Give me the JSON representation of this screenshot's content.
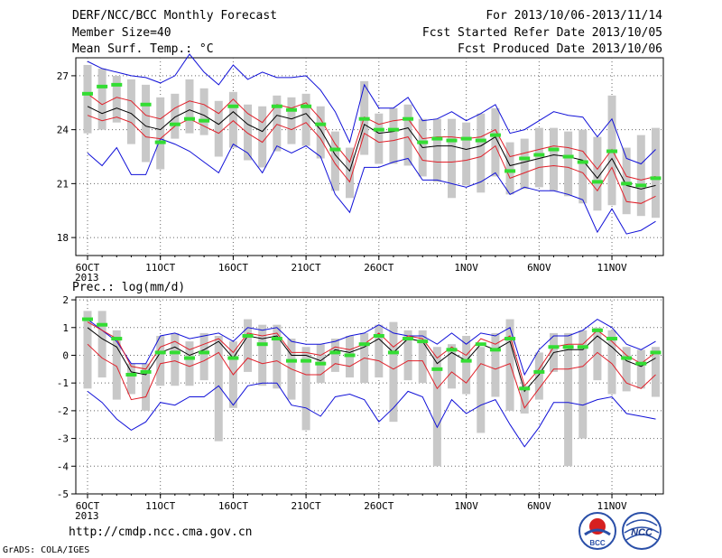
{
  "header": {
    "title": "DERF/NCC/BCC Monthly Forecast",
    "member": "Member Size=40",
    "var1": "Mean Surf. Temp.: °C",
    "period": "For 2013/10/06-2013/11/14",
    "start": "Fcst Started Refer Date 2013/10/05",
    "produced": "Fcst Produced Date 2013/10/06"
  },
  "footer": {
    "url": "http://cmdp.ncc.cma.gov.cn",
    "grads": "GrADS: COLA/IGES"
  },
  "logos": {
    "bcc": "BCC",
    "ncc": "NCC"
  },
  "colors": {
    "mean": "#000000",
    "spread": "#e0202a",
    "extreme": "#1010d8",
    "members": "#c8c8c8",
    "obs_mark": "#33dd33"
  },
  "chart_data": [
    {
      "type": "line",
      "title": "Mean Surf. Temp.: °C",
      "x_ticks": [
        "6OCT",
        "11OCT",
        "16OCT",
        "21OCT",
        "26OCT",
        "1NOV",
        "6NOV",
        "11NOV"
      ],
      "x_tick_days": [
        0,
        5,
        10,
        15,
        20,
        26,
        31,
        36
      ],
      "x_sub": "2013",
      "ylim": [
        17,
        28
      ],
      "y_ticks": [
        18,
        21,
        24,
        27
      ],
      "grid": true,
      "days": 40,
      "series": [
        {
          "role": "mean",
          "values": [
            25.3,
            24.9,
            25.2,
            24.9,
            24.2,
            24.0,
            24.7,
            25.1,
            24.8,
            24.3,
            25.0,
            24.3,
            23.9,
            24.8,
            24.6,
            24.9,
            24.0,
            22.6,
            21.7,
            24.3,
            23.8,
            23.9,
            24.1,
            23.0,
            23.1,
            23.1,
            22.9,
            23.1,
            23.6,
            22.0,
            22.2,
            22.4,
            22.6,
            22.5,
            22.3,
            21.3,
            22.4,
            20.9,
            20.7,
            20.9
          ]
        },
        {
          "role": "upper",
          "values": [
            26.0,
            25.4,
            25.8,
            25.6,
            24.8,
            24.6,
            25.2,
            25.6,
            25.4,
            24.9,
            25.7,
            24.9,
            24.4,
            25.4,
            25.2,
            25.5,
            24.6,
            23.2,
            22.2,
            24.7,
            24.3,
            24.5,
            24.6,
            23.5,
            23.6,
            23.6,
            23.5,
            23.6,
            24.0,
            22.5,
            22.7,
            22.9,
            23.1,
            23.0,
            22.8,
            21.8,
            22.9,
            21.4,
            21.2,
            21.4
          ]
        },
        {
          "role": "lower",
          "values": [
            24.8,
            24.5,
            24.7,
            24.4,
            23.6,
            23.5,
            24.2,
            24.6,
            24.2,
            23.8,
            24.5,
            23.8,
            23.3,
            24.3,
            24.0,
            24.4,
            23.5,
            22.1,
            21.1,
            23.8,
            23.3,
            23.4,
            23.6,
            22.3,
            22.2,
            22.2,
            22.3,
            22.5,
            23.1,
            21.3,
            21.6,
            21.9,
            22.0,
            21.9,
            21.6,
            20.6,
            21.9,
            20.0,
            19.9,
            20.3
          ]
        },
        {
          "role": "max",
          "values": [
            27.8,
            27.4,
            27.2,
            27.0,
            26.9,
            26.6,
            27.0,
            28.2,
            27.2,
            26.5,
            27.6,
            26.8,
            27.2,
            26.9,
            26.9,
            27.0,
            26.2,
            25.0,
            23.3,
            26.5,
            25.2,
            25.2,
            25.8,
            24.5,
            24.6,
            25.0,
            24.5,
            24.9,
            25.4,
            23.8,
            24.0,
            24.5,
            25.0,
            24.8,
            24.7,
            23.6,
            24.6,
            22.4,
            22.1,
            22.9
          ]
        },
        {
          "role": "min",
          "values": [
            22.7,
            22.0,
            23.0,
            21.5,
            21.5,
            23.5,
            23.2,
            22.8,
            22.2,
            21.6,
            23.2,
            22.7,
            21.6,
            23.1,
            22.7,
            23.1,
            22.5,
            20.4,
            19.4,
            21.9,
            21.9,
            22.2,
            22.4,
            21.2,
            21.2,
            21.0,
            20.8,
            21.1,
            21.6,
            20.4,
            20.8,
            20.6,
            20.6,
            20.4,
            20.1,
            18.3,
            19.6,
            18.2,
            18.4,
            18.9
          ]
        },
        {
          "role": "obs",
          "values": [
            26.0,
            26.4,
            26.5,
            null,
            25.4,
            23.3,
            24.3,
            24.6,
            24.5,
            null,
            25.3,
            null,
            null,
            25.3,
            25.1,
            25.3,
            24.3,
            22.9,
            null,
            24.6,
            24.0,
            24.0,
            24.6,
            23.3,
            23.5,
            23.4,
            23.5,
            23.4,
            23.7,
            21.7,
            22.4,
            22.6,
            22.9,
            22.5,
            22.2,
            21.1,
            22.8,
            21.0,
            20.9,
            21.3
          ]
        }
      ],
      "members": [
        [
          23.8,
          27.6
        ],
        [
          24.0,
          27.4
        ],
        [
          24.4,
          27.0
        ],
        [
          23.2,
          26.8
        ],
        [
          22.2,
          26.5
        ],
        [
          21.8,
          25.8
        ],
        [
          23.5,
          26.0
        ],
        [
          23.8,
          26.8
        ],
        [
          23.7,
          26.3
        ],
        [
          22.5,
          25.6
        ],
        [
          23.0,
          26.1
        ],
        [
          22.3,
          25.4
        ],
        [
          21.9,
          25.3
        ],
        [
          22.8,
          25.9
        ],
        [
          23.2,
          25.8
        ],
        [
          23.1,
          26.0
        ],
        [
          22.4,
          25.3
        ],
        [
          20.6,
          23.9
        ],
        [
          20.2,
          23.0
        ],
        [
          22.6,
          26.7
        ],
        [
          22.1,
          24.9
        ],
        [
          22.1,
          25.2
        ],
        [
          22.0,
          25.4
        ],
        [
          21.4,
          24.6
        ],
        [
          21.1,
          24.6
        ],
        [
          20.2,
          24.6
        ],
        [
          20.9,
          24.4
        ],
        [
          20.5,
          24.9
        ],
        [
          21.4,
          25.2
        ],
        [
          20.4,
          23.3
        ],
        [
          20.7,
          23.5
        ],
        [
          20.8,
          24.1
        ],
        [
          20.6,
          24.1
        ],
        [
          20.3,
          23.9
        ],
        [
          19.9,
          24.0
        ],
        [
          19.5,
          23.6
        ],
        [
          19.8,
          25.9
        ],
        [
          19.3,
          23.0
        ],
        [
          19.2,
          23.7
        ],
        [
          19.1,
          24.1
        ]
      ]
    },
    {
      "type": "line",
      "title": "Prec.: log(mm/d)",
      "x_ticks": [
        "6OCT",
        "11OCT",
        "16OCT",
        "21OCT",
        "26OCT",
        "1NOV",
        "6NOV",
        "11NOV"
      ],
      "x_tick_days": [
        0,
        5,
        10,
        15,
        20,
        26,
        31,
        36
      ],
      "x_sub": "2013",
      "ylim": [
        -5,
        2.1
      ],
      "y_ticks": [
        -5,
        -4,
        -3,
        -2,
        -1,
        0,
        1,
        2
      ],
      "grid": true,
      "days": 40,
      "series": [
        {
          "role": "mean",
          "values": [
            1.0,
            0.6,
            0.3,
            -0.6,
            -0.7,
            0.1,
            0.3,
            0.0,
            0.2,
            0.5,
            -0.1,
            0.7,
            0.6,
            0.7,
            0.0,
            0.0,
            -0.2,
            0.2,
            0.1,
            0.3,
            0.6,
            0.1,
            0.6,
            0.5,
            -0.3,
            0.1,
            -0.2,
            0.4,
            0.2,
            0.5,
            -1.3,
            -0.7,
            0.1,
            0.2,
            0.2,
            0.7,
            0.3,
            -0.2,
            -0.4,
            -0.1
          ]
        },
        {
          "role": "upper",
          "values": [
            1.2,
            0.9,
            0.6,
            -0.4,
            -0.5,
            0.3,
            0.5,
            0.2,
            0.4,
            0.6,
            0.1,
            0.8,
            0.7,
            0.8,
            0.1,
            0.1,
            0.0,
            0.3,
            0.2,
            0.4,
            0.8,
            0.3,
            0.7,
            0.6,
            -0.1,
            0.3,
            0.0,
            0.6,
            0.4,
            0.7,
            -1.1,
            -0.5,
            0.3,
            0.4,
            0.4,
            0.9,
            0.5,
            0.0,
            -0.3,
            0.1
          ]
        },
        {
          "role": "lower",
          "values": [
            0.4,
            -0.1,
            -0.4,
            -1.6,
            -1.5,
            -0.3,
            -0.2,
            -0.4,
            -0.2,
            0.1,
            -0.7,
            -0.1,
            -0.3,
            -0.2,
            -0.5,
            -0.7,
            -0.7,
            -0.3,
            -0.4,
            -0.1,
            -0.2,
            -0.5,
            -0.2,
            -0.2,
            -1.2,
            -0.6,
            -1.0,
            -0.3,
            -0.5,
            -0.3,
            -1.9,
            -1.2,
            -0.5,
            -0.5,
            -0.4,
            0.1,
            -0.3,
            -1.0,
            -1.2,
            -0.7
          ]
        },
        {
          "role": "max",
          "values": [
            1.3,
            0.9,
            0.5,
            -0.3,
            -0.3,
            0.7,
            0.8,
            0.6,
            0.7,
            0.8,
            0.5,
            1.0,
            0.9,
            1.0,
            0.5,
            0.4,
            0.4,
            0.5,
            0.7,
            0.8,
            1.1,
            0.8,
            0.7,
            0.7,
            0.4,
            0.8,
            0.4,
            0.8,
            0.7,
            1.0,
            -0.7,
            0.2,
            0.7,
            0.7,
            0.9,
            1.3,
            1.0,
            0.4,
            0.2,
            0.5
          ]
        },
        {
          "role": "min",
          "values": [
            -1.3,
            -1.7,
            -2.3,
            -2.7,
            -2.4,
            -1.7,
            -1.8,
            -1.5,
            -1.5,
            -1.1,
            -1.8,
            -1.1,
            -1.0,
            -1.0,
            -1.8,
            -1.9,
            -2.2,
            -1.5,
            -1.4,
            -1.6,
            -2.4,
            -1.9,
            -1.3,
            -1.5,
            -2.6,
            -1.6,
            -2.1,
            -1.8,
            -1.6,
            -2.5,
            -3.3,
            -2.6,
            -1.7,
            -1.7,
            -1.8,
            -1.6,
            -1.5,
            -2.1,
            -2.2,
            -2.3
          ]
        },
        {
          "role": "obs",
          "values": [
            1.3,
            1.1,
            0.6,
            -0.7,
            -0.6,
            0.1,
            0.1,
            -0.1,
            0.1,
            null,
            -0.1,
            0.7,
            0.4,
            0.6,
            -0.2,
            -0.2,
            -0.3,
            0.1,
            0.0,
            0.4,
            0.7,
            0.1,
            0.6,
            0.5,
            -0.5,
            0.2,
            -0.2,
            0.4,
            0.2,
            0.6,
            -1.2,
            -0.6,
            0.3,
            0.3,
            0.3,
            0.9,
            0.6,
            -0.1,
            -0.3,
            0.1
          ]
        }
      ],
      "members": [
        [
          -1.2,
          1.6
        ],
        [
          -0.8,
          1.6
        ],
        [
          -1.6,
          0.9
        ],
        [
          -1.4,
          -0.3
        ],
        [
          -2.0,
          -0.3
        ],
        [
          -1.1,
          0.7
        ],
        [
          -1.1,
          0.8
        ],
        [
          -1.1,
          0.5
        ],
        [
          -0.9,
          0.8
        ],
        [
          -3.1,
          0.7
        ],
        [
          -1.9,
          0.5
        ],
        [
          -0.6,
          1.3
        ],
        [
          -1.1,
          1.1
        ],
        [
          -1.2,
          1.1
        ],
        [
          -1.6,
          0.6
        ],
        [
          -2.7,
          0.3
        ],
        [
          -1.0,
          0.4
        ],
        [
          -0.6,
          0.6
        ],
        [
          -0.8,
          0.7
        ],
        [
          -1.0,
          0.8
        ],
        [
          -0.8,
          1.1
        ],
        [
          -2.4,
          1.2
        ],
        [
          -0.9,
          0.9
        ],
        [
          -1.0,
          0.9
        ],
        [
          -4.0,
          0.3
        ],
        [
          -1.2,
          0.4
        ],
        [
          -1.4,
          0.7
        ],
        [
          -2.8,
          0.3
        ],
        [
          -1.5,
          0.8
        ],
        [
          -2.0,
          1.3
        ],
        [
          -2.1,
          -1.1
        ],
        [
          -1.6,
          0.1
        ],
        [
          -0.6,
          0.8
        ],
        [
          -4.0,
          0.8
        ],
        [
          -3.0,
          0.9
        ],
        [
          -0.9,
          1.0
        ],
        [
          -1.4,
          0.9
        ],
        [
          -1.3,
          0.3
        ],
        [
          -1.2,
          0.2
        ],
        [
          -1.5,
          0.3
        ]
      ]
    }
  ]
}
